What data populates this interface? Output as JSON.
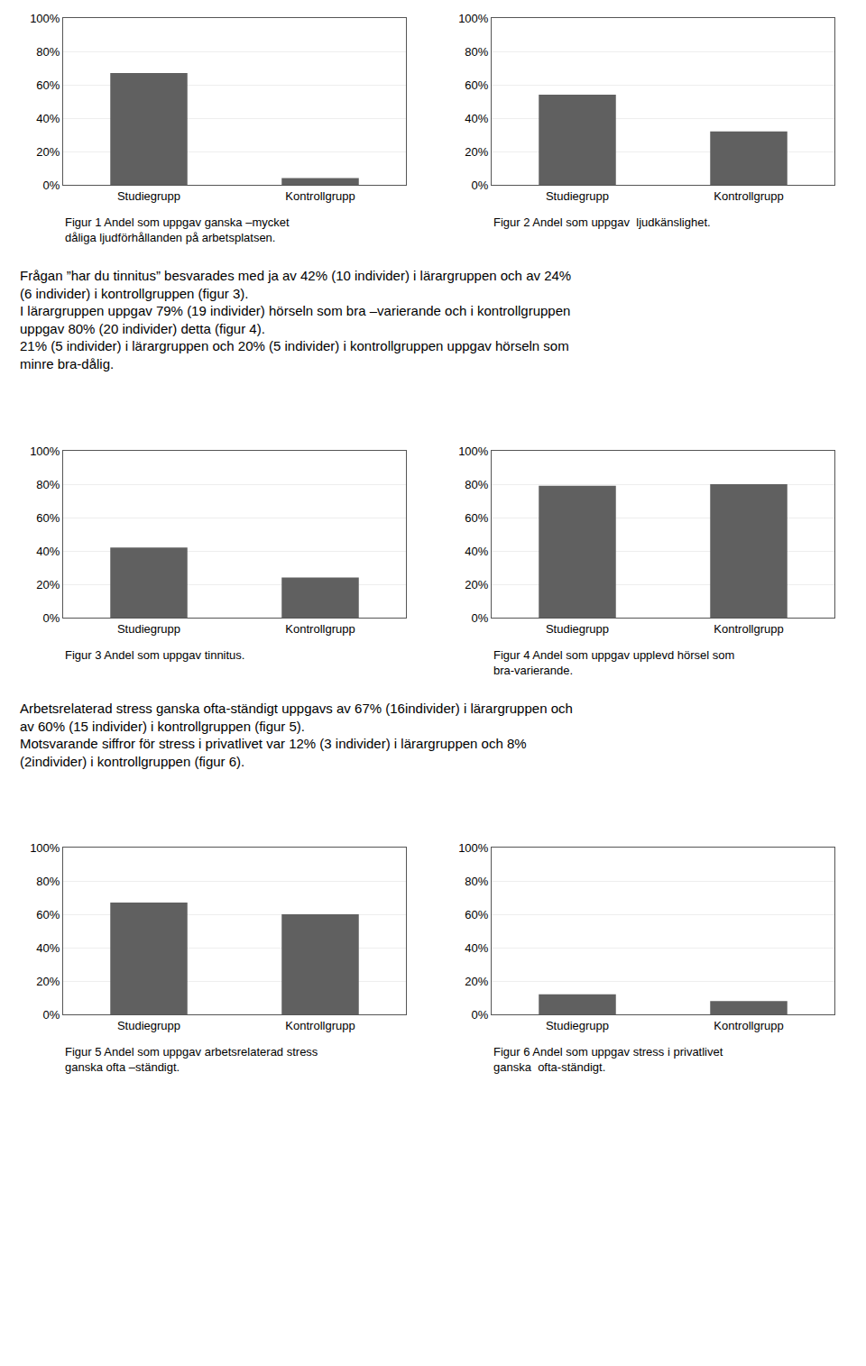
{
  "chart_data": [
    {
      "type": "bar",
      "title": "Figur 1 Andel som uppgav ganska –mycket\ndåliga ljudförhållanden på arbetsplatsen.",
      "categories": [
        "Studiegrupp",
        "Kontrollgrupp"
      ],
      "values": [
        0.67,
        0.04
      ],
      "color": "#606060",
      "ylim": [
        0,
        1.0
      ],
      "yticks": [
        {
          "value": 0.0,
          "label": "0%"
        },
        {
          "value": 0.2,
          "label": "20%"
        },
        {
          "value": 0.4,
          "label": "40%"
        },
        {
          "value": 0.6,
          "label": "60%"
        },
        {
          "value": 0.8,
          "label": "80%"
        },
        {
          "value": 1.0,
          "label": "100%"
        }
      ],
      "grid": true,
      "annotations": [
        "Frågan ”har du tinnitus” besvarades med ja av 42% (10 individer) i lärargruppen och av 24%\n(6 individer) i kontrollgruppen (figur 3).\nI lärargruppen uppgav 79% (19 individer) hörseln som bra –varierande och i kontrollgruppen\nuppgav 80% (20 individer) detta (figur 4).\n21% (5 individer) i lärargruppen och 20% (5 individer) i kontrollgruppen uppgav hörseln som\nminre bra-dålig."
      ]
    },
    {
      "type": "bar",
      "title": "Figur 2 Andel som uppgav  ljudkänslighet.",
      "categories": [
        "Studiegrupp",
        "Kontrollgrupp"
      ],
      "values": [
        0.54,
        0.32
      ],
      "color": "#606060",
      "ylim": [
        0,
        1.0
      ],
      "yticks": [
        {
          "value": 0.0,
          "label": "0%"
        },
        {
          "value": 0.2,
          "label": "20%"
        },
        {
          "value": 0.4,
          "label": "40%"
        },
        {
          "value": 0.6,
          "label": "60%"
        },
        {
          "value": 0.8,
          "label": "80%"
        },
        {
          "value": 1.0,
          "label": "100%"
        }
      ],
      "grid": true
    },
    {
      "type": "bar",
      "title": "Figur 3 Andel som uppgav tinnitus.",
      "categories": [
        "Studiegrupp",
        "Kontrollgrupp"
      ],
      "values": [
        0.42,
        0.24
      ],
      "color": "#606060",
      "ylim": [
        0,
        1.0
      ],
      "yticks": [
        {
          "value": 0.0,
          "label": "0%"
        },
        {
          "value": 0.2,
          "label": "20%"
        },
        {
          "value": 0.4,
          "label": "40%"
        },
        {
          "value": 0.6,
          "label": "60%"
        },
        {
          "value": 0.8,
          "label": "80%"
        },
        {
          "value": 1.0,
          "label": "100%"
        }
      ],
      "grid": true,
      "annotations": [
        "Arbetsrelaterad stress ganska ofta-ständigt uppgavs av 67% (16individer) i lärargruppen och\nav 60% (15 individer) i kontrollgruppen (figur 5).\nMotsvarande siffror för stress i privatlivet var 12% (3 individer) i lärargruppen och 8%\n(2individer) i kontrollgruppen (figur 6)."
      ]
    },
    {
      "type": "bar",
      "title": "Figur 4 Andel som uppgav upplevd hörsel som\nbra-varierande.",
      "categories": [
        "Studiegrupp",
        "Kontrollgrupp"
      ],
      "values": [
        0.79,
        0.8
      ],
      "color": "#606060",
      "ylim": [
        0,
        1.0
      ],
      "yticks": [
        {
          "value": 0.0,
          "label": "0%"
        },
        {
          "value": 0.2,
          "label": "20%"
        },
        {
          "value": 0.4,
          "label": "40%"
        },
        {
          "value": 0.6,
          "label": "60%"
        },
        {
          "value": 0.8,
          "label": "80%"
        },
        {
          "value": 1.0,
          "label": "100%"
        }
      ],
      "grid": true
    },
    {
      "type": "bar",
      "title": "Figur 5 Andel som uppgav arbetsrelaterad stress\nganska ofta –ständigt.",
      "categories": [
        "Studiegrupp",
        "Kontrollgrupp"
      ],
      "values": [
        0.67,
        0.6
      ],
      "color": "#606060",
      "ylim": [
        0,
        1.0
      ],
      "yticks": [
        {
          "value": 0.0,
          "label": "0%"
        },
        {
          "value": 0.2,
          "label": "20%"
        },
        {
          "value": 0.4,
          "label": "40%"
        },
        {
          "value": 0.6,
          "label": "60%"
        },
        {
          "value": 0.8,
          "label": "80%"
        },
        {
          "value": 1.0,
          "label": "100%"
        }
      ],
      "grid": true
    },
    {
      "type": "bar",
      "title": "Figur 6 Andel som uppgav stress i privatlivet\nganska  ofta-ständigt.",
      "categories": [
        "Studiegrupp",
        "Kontrollgrupp"
      ],
      "values": [
        0.12,
        0.08
      ],
      "color": "#606060",
      "ylim": [
        0,
        1.0
      ],
      "yticks": [
        {
          "value": 0.0,
          "label": "0%"
        },
        {
          "value": 0.2,
          "label": "20%"
        },
        {
          "value": 0.4,
          "label": "40%"
        },
        {
          "value": 0.6,
          "label": "60%"
        },
        {
          "value": 0.8,
          "label": "80%"
        },
        {
          "value": 1.0,
          "label": "100%"
        }
      ],
      "grid": true
    }
  ]
}
